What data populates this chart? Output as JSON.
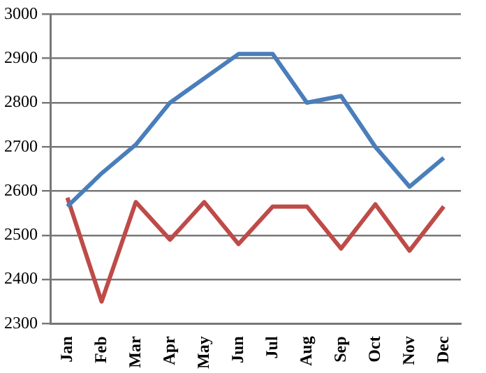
{
  "chart_data": {
    "type": "line",
    "categories": [
      "Jan",
      "Feb",
      "Mar",
      "Apr",
      "May",
      "Jun",
      "Jul",
      "Aug",
      "Sep",
      "Oct",
      "Nov",
      "Dec"
    ],
    "series": [
      {
        "color": "#4a7ebb",
        "values": [
          2565,
          2640,
          2705,
          2800,
          2855,
          2910,
          2910,
          2800,
          2815,
          2700,
          2610,
          2675
        ]
      },
      {
        "color": "#be4b48",
        "values": [
          2585,
          2350,
          2575,
          2490,
          2575,
          2480,
          2565,
          2565,
          2470,
          2570,
          2465,
          2565
        ]
      }
    ],
    "ylim": [
      2300,
      3000
    ],
    "yticks": [
      2300,
      2400,
      2500,
      2600,
      2700,
      2800,
      2900,
      3000
    ],
    "grid": "y",
    "legend": false,
    "marker": "none",
    "line_style": "solid"
  }
}
